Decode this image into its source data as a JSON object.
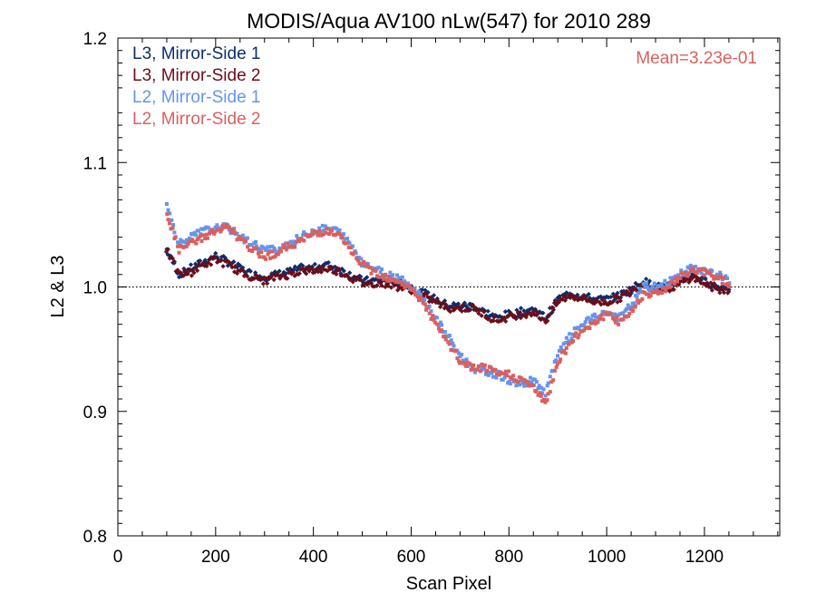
{
  "chart_data": {
    "type": "scatter",
    "title": "MODIS/Aqua AV100 nLw(547) for 2010 289",
    "xlabel": "Scan Pixel",
    "ylabel": "L2 & L3",
    "xlim": [
      0,
      1354
    ],
    "ylim": [
      0.8,
      1.2
    ],
    "x_ticks": [
      "0",
      "200",
      "400",
      "600",
      "800",
      "1000",
      "1200"
    ],
    "y_ticks": [
      "0.8",
      "0.9",
      "1.0",
      "1.1",
      "1.2"
    ],
    "reference_line": {
      "y": 1.0,
      "style": "dotted"
    },
    "annotation": "Mean=3.23e-01",
    "annotation_color": "#d9605f",
    "legend_position": "top-left",
    "series": [
      {
        "name": "L3, Mirror-Side 1",
        "color": "#0b2e6b",
        "marker": "diamond",
        "x": [
          100,
          125,
          150,
          175,
          200,
          225,
          250,
          275,
          300,
          325,
          350,
          375,
          400,
          425,
          450,
          475,
          500,
          525,
          550,
          575,
          600,
          625,
          650,
          675,
          700,
          725,
          750,
          775,
          800,
          825,
          850,
          875,
          900,
          925,
          950,
          975,
          1000,
          1025,
          1050,
          1075,
          1100,
          1125,
          1150,
          1175,
          1200,
          1225,
          1250
        ],
        "y": [
          1.03,
          1.01,
          1.015,
          1.02,
          1.025,
          1.02,
          1.015,
          1.01,
          1.008,
          1.01,
          1.012,
          1.015,
          1.015,
          1.018,
          1.015,
          1.01,
          1.005,
          1.005,
          1.005,
          1.003,
          1.0,
          0.995,
          0.99,
          0.985,
          0.985,
          0.985,
          0.98,
          0.975,
          0.978,
          0.98,
          0.982,
          0.975,
          0.99,
          0.995,
          0.993,
          0.99,
          0.99,
          0.993,
          0.998,
          1.005,
          1.0,
          1.0,
          1.005,
          1.01,
          1.005,
          1.0,
          1.0
        ]
      },
      {
        "name": "L3, Mirror-Side 2",
        "color": "#6b0d1a",
        "marker": "diamond",
        "x": [
          100,
          125,
          150,
          175,
          200,
          225,
          250,
          275,
          300,
          325,
          350,
          375,
          400,
          425,
          450,
          475,
          500,
          525,
          550,
          575,
          600,
          625,
          650,
          675,
          700,
          725,
          750,
          775,
          800,
          825,
          850,
          875,
          900,
          925,
          950,
          975,
          1000,
          1025,
          1050,
          1075,
          1100,
          1125,
          1150,
          1175,
          1200,
          1225,
          1250
        ],
        "y": [
          1.03,
          1.01,
          1.012,
          1.018,
          1.022,
          1.018,
          1.012,
          1.008,
          1.005,
          1.008,
          1.01,
          1.013,
          1.013,
          1.015,
          1.013,
          1.008,
          1.003,
          1.003,
          1.003,
          1.0,
          0.998,
          0.993,
          0.988,
          0.983,
          0.983,
          0.983,
          0.978,
          0.973,
          0.976,
          0.978,
          0.98,
          0.973,
          0.988,
          0.993,
          0.991,
          0.988,
          0.988,
          0.991,
          0.996,
          1.003,
          0.998,
          0.998,
          1.003,
          1.008,
          1.003,
          0.998,
          0.998
        ]
      },
      {
        "name": "L2, Mirror-Side 1",
        "color": "#6495ed",
        "marker": "square",
        "x": [
          100,
          125,
          150,
          175,
          200,
          225,
          250,
          275,
          300,
          325,
          350,
          375,
          400,
          425,
          450,
          475,
          500,
          525,
          550,
          575,
          600,
          625,
          650,
          675,
          700,
          725,
          750,
          775,
          800,
          825,
          850,
          875,
          900,
          925,
          950,
          975,
          1000,
          1025,
          1050,
          1075,
          1100,
          1125,
          1150,
          1175,
          1200,
          1225,
          1250
        ],
        "y": [
          1.065,
          1.035,
          1.04,
          1.045,
          1.047,
          1.048,
          1.04,
          1.035,
          1.03,
          1.03,
          1.035,
          1.04,
          1.045,
          1.047,
          1.045,
          1.035,
          1.02,
          1.015,
          1.01,
          1.008,
          1.0,
          0.99,
          0.975,
          0.96,
          0.945,
          0.935,
          0.932,
          0.93,
          0.925,
          0.922,
          0.925,
          0.915,
          0.945,
          0.96,
          0.97,
          0.975,
          0.98,
          0.975,
          0.985,
          1.0,
          1.0,
          1.003,
          1.01,
          1.015,
          1.013,
          1.01,
          1.005
        ]
      },
      {
        "name": "L2, Mirror-Side 2",
        "color": "#d9605f",
        "marker": "square",
        "x": [
          100,
          125,
          150,
          175,
          200,
          225,
          250,
          275,
          300,
          325,
          350,
          375,
          400,
          425,
          450,
          475,
          500,
          525,
          550,
          575,
          600,
          625,
          650,
          675,
          700,
          725,
          750,
          775,
          800,
          825,
          850,
          875,
          900,
          925,
          950,
          975,
          1000,
          1025,
          1050,
          1075,
          1100,
          1125,
          1150,
          1175,
          1200,
          1225,
          1250
        ],
        "y": [
          1.06,
          1.03,
          1.035,
          1.04,
          1.045,
          1.048,
          1.038,
          1.03,
          1.025,
          1.027,
          1.033,
          1.037,
          1.043,
          1.045,
          1.042,
          1.03,
          1.018,
          1.012,
          1.008,
          1.005,
          0.998,
          0.988,
          0.97,
          0.955,
          0.94,
          0.935,
          0.935,
          0.93,
          0.93,
          0.925,
          0.92,
          0.905,
          0.94,
          0.955,
          0.965,
          0.972,
          0.978,
          0.972,
          0.98,
          0.995,
          0.995,
          1.0,
          1.008,
          1.013,
          1.012,
          1.008,
          1.003
        ]
      }
    ]
  }
}
